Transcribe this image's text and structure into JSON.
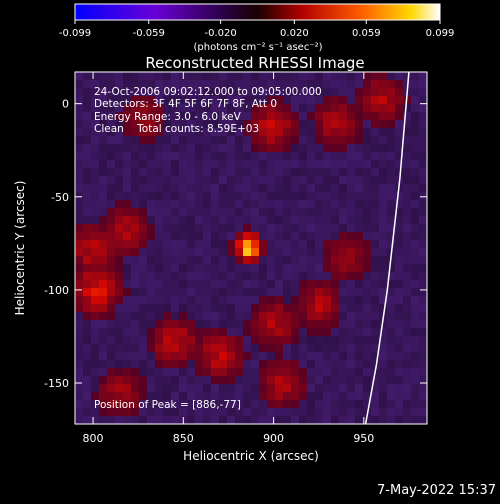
{
  "colorbar": {
    "ticks": [
      "-0.099",
      "-0.059",
      "-0.020",
      "0.020",
      "0.059",
      "0.099"
    ],
    "tick_values": [
      -0.099,
      -0.059,
      -0.02,
      0.02,
      0.059,
      0.099
    ],
    "range": [
      -0.099,
      0.099
    ],
    "units": "(photons cm⁻² s⁻¹ asec⁻²)"
  },
  "annotations": {
    "time": "24-Oct-2006 09:02:12.000 to 09:05:00.000",
    "detectors": "Detectors: 3F 4F 5F 6F 7F 8F, Att 0",
    "energy": "Energy Range: 3.0 - 6.0 keV",
    "clean": "Clean    Total counts: 8.59E+03",
    "peak": "Position of Peak = [886,-77]"
  },
  "footer": {
    "date": "7-May-2022 15:37"
  },
  "chart_data": {
    "type": "heatmap",
    "title": "Reconstructed RHESSI Image",
    "xlabel": "Heliocentric X (arcsec)",
    "ylabel": "Heliocentric Y (arcsec)",
    "xlim": [
      790,
      985
    ],
    "ylim": [
      -172,
      17
    ],
    "xticks": [
      800,
      850,
      900,
      950
    ],
    "yticks": [
      0,
      -50,
      -100,
      -150
    ],
    "colormap": "red-temperature (blue-purple-black-red-yellow-white)",
    "peak": {
      "x": 886,
      "y": -77,
      "label": "Position of Peak = [886,-77]"
    },
    "solar_limb": "white arc near right edge",
    "hot_regions": [
      {
        "x": 886,
        "y": -77,
        "level": 1.0
      },
      {
        "x": 900,
        "y": -12,
        "level": 0.45
      },
      {
        "x": 935,
        "y": -10,
        "level": 0.4
      },
      {
        "x": 960,
        "y": 2,
        "level": 0.4
      },
      {
        "x": 802,
        "y": -100,
        "level": 0.55
      },
      {
        "x": 800,
        "y": -78,
        "level": 0.45
      },
      {
        "x": 818,
        "y": -68,
        "level": 0.4
      },
      {
        "x": 845,
        "y": -128,
        "level": 0.45
      },
      {
        "x": 870,
        "y": -135,
        "level": 0.45
      },
      {
        "x": 900,
        "y": -118,
        "level": 0.4
      },
      {
        "x": 925,
        "y": -108,
        "level": 0.4
      },
      {
        "x": 905,
        "y": -150,
        "level": 0.4
      },
      {
        "x": 940,
        "y": -82,
        "level": 0.35
      },
      {
        "x": 815,
        "y": -155,
        "level": 0.35
      },
      {
        "x": 828,
        "y": -8,
        "level": 0.3
      }
    ]
  }
}
